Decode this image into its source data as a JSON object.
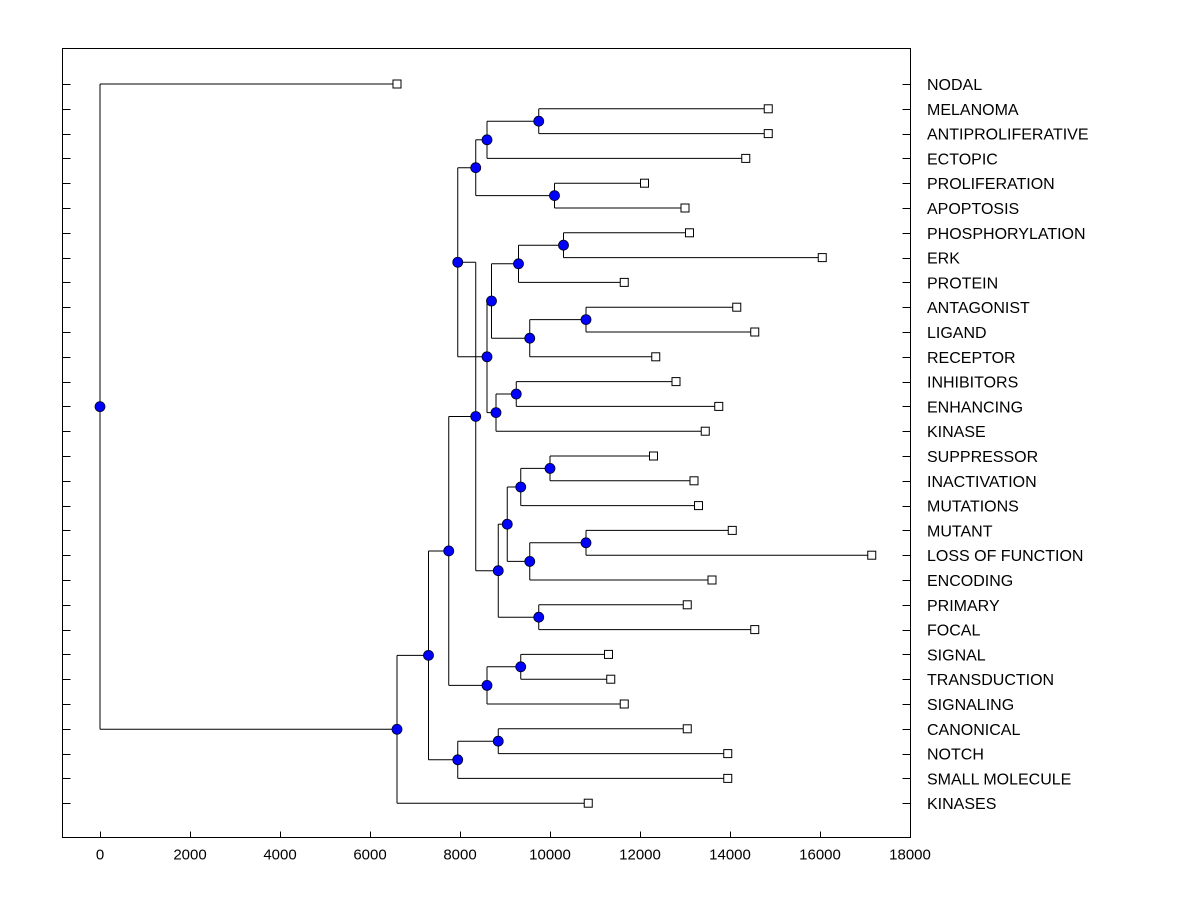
{
  "chart_data": {
    "type": "dendrogram",
    "title": "",
    "xlabel": "",
    "ylabel": "",
    "xlim": [
      -800,
      18000
    ],
    "x_ticks": [
      0,
      2000,
      4000,
      6000,
      8000,
      10000,
      12000,
      14000,
      16000,
      18000
    ],
    "x_tick_labels": [
      "0",
      "2000",
      "4000",
      "6000",
      "8000",
      "10000",
      "12000",
      "14000",
      "16000",
      "18000"
    ],
    "colors": {
      "node": "#0000ff",
      "line": "#000000",
      "leaf_fill": "#ffffff"
    },
    "leaves": [
      {
        "label": "NODAL",
        "x": 6600
      },
      {
        "label": "MELANOMA",
        "x": 14850
      },
      {
        "label": "ANTIPROLIFERATIVE",
        "x": 14850
      },
      {
        "label": "ECTOPIC",
        "x": 14350
      },
      {
        "label": "PROLIFERATION",
        "x": 12100
      },
      {
        "label": "APOPTOSIS",
        "x": 13000
      },
      {
        "label": "PHOSPHORYLATION",
        "x": 13100
      },
      {
        "label": "ERK",
        "x": 16050
      },
      {
        "label": "PROTEIN",
        "x": 11650
      },
      {
        "label": "ANTAGONIST",
        "x": 14150
      },
      {
        "label": "LIGAND",
        "x": 14550
      },
      {
        "label": "RECEPTOR",
        "x": 12350
      },
      {
        "label": "INHIBITORS",
        "x": 12800
      },
      {
        "label": "ENHANCING",
        "x": 13750
      },
      {
        "label": "KINASE",
        "x": 13450
      },
      {
        "label": "SUPPRESSOR",
        "x": 12300
      },
      {
        "label": "INACTIVATION",
        "x": 13200
      },
      {
        "label": "MUTATIONS",
        "x": 13300
      },
      {
        "label": "MUTANT",
        "x": 14050
      },
      {
        "label": "LOSS OF FUNCTION",
        "x": 17150
      },
      {
        "label": "ENCODING",
        "x": 13600
      },
      {
        "label": "PRIMARY",
        "x": 13050
      },
      {
        "label": "FOCAL",
        "x": 14550
      },
      {
        "label": "SIGNAL",
        "x": 11300
      },
      {
        "label": "TRANSDUCTION",
        "x": 11350
      },
      {
        "label": "SIGNALING",
        "x": 11650
      },
      {
        "label": "CANONICAL",
        "x": 13050
      },
      {
        "label": "NOTCH",
        "x": 13950
      },
      {
        "label": "SMALL MOLECULE",
        "x": 13950
      },
      {
        "label": "KINASES",
        "x": 10850
      }
    ],
    "merges": [
      {
        "id": "m_mel_anti",
        "x": 9750,
        "children": [
          "L1",
          "L2"
        ]
      },
      {
        "id": "m_mel_ect",
        "x": 8600,
        "children": [
          "m_mel_anti",
          "L3"
        ]
      },
      {
        "id": "m_prol_apop",
        "x": 10100,
        "children": [
          "L4",
          "L5"
        ]
      },
      {
        "id": "m_top",
        "x": 8350,
        "children": [
          "m_mel_ect",
          "m_prol_apop"
        ]
      },
      {
        "id": "m_phos_erk",
        "x": 10300,
        "children": [
          "L6",
          "L7"
        ]
      },
      {
        "id": "m_phos_prot",
        "x": 9300,
        "children": [
          "m_phos_erk",
          "L8"
        ]
      },
      {
        "id": "m_ant_lig",
        "x": 10800,
        "children": [
          "L9",
          "L10"
        ]
      },
      {
        "id": "m_ant_rec",
        "x": 9550,
        "children": [
          "m_ant_lig",
          "L11"
        ]
      },
      {
        "id": "m_phos_rec",
        "x": 8700,
        "children": [
          "m_phos_prot",
          "m_ant_rec"
        ]
      },
      {
        "id": "m_inh_enh",
        "x": 9250,
        "children": [
          "L12",
          "L13"
        ]
      },
      {
        "id": "m_inh_kin",
        "x": 8800,
        "children": [
          "m_inh_enh",
          "L14"
        ]
      },
      {
        "id": "m_mid",
        "x": 8600,
        "children": [
          "m_phos_rec",
          "m_inh_kin"
        ]
      },
      {
        "id": "m_upper",
        "x": 7950,
        "children": [
          "m_top",
          "m_mid"
        ]
      },
      {
        "id": "m_sup_inac",
        "x": 10000,
        "children": [
          "L15",
          "L16"
        ]
      },
      {
        "id": "m_sup_mut",
        "x": 9350,
        "children": [
          "m_sup_inac",
          "L17"
        ]
      },
      {
        "id": "m_mutant_lof",
        "x": 10800,
        "children": [
          "L18",
          "L19"
        ]
      },
      {
        "id": "m_mutant_enc",
        "x": 9550,
        "children": [
          "m_mutant_lof",
          "L20"
        ]
      },
      {
        "id": "m_sup_enc",
        "x": 9050,
        "children": [
          "m_sup_mut",
          "m_mutant_enc"
        ]
      },
      {
        "id": "m_prim_foc",
        "x": 9750,
        "children": [
          "L21",
          "L22"
        ]
      },
      {
        "id": "m_sup_foc",
        "x": 8850,
        "children": [
          "m_sup_enc",
          "m_prim_foc"
        ]
      },
      {
        "id": "m_lowmid",
        "x": 8350,
        "children": [
          "m_upper",
          "m_sup_foc"
        ]
      },
      {
        "id": "m_sig_trans",
        "x": 9350,
        "children": [
          "L23",
          "L24"
        ]
      },
      {
        "id": "m_sig_signaling",
        "x": 8600,
        "children": [
          "m_sig_trans",
          "L25"
        ]
      },
      {
        "id": "m_main",
        "x": 7750,
        "children": [
          "m_lowmid",
          "m_sig_signaling"
        ]
      },
      {
        "id": "m_can_notch",
        "x": 8850,
        "children": [
          "L26",
          "L27"
        ]
      },
      {
        "id": "m_can_small",
        "x": 7950,
        "children": [
          "m_can_notch",
          "L28"
        ]
      },
      {
        "id": "m_main2",
        "x": 7300,
        "children": [
          "m_main",
          "m_can_small"
        ]
      },
      {
        "id": "m_all",
        "x": 6600,
        "children": [
          "m_main2",
          "L29"
        ]
      },
      {
        "id": "m_root",
        "x": 0,
        "children": [
          "L0",
          "m_all"
        ]
      }
    ]
  }
}
